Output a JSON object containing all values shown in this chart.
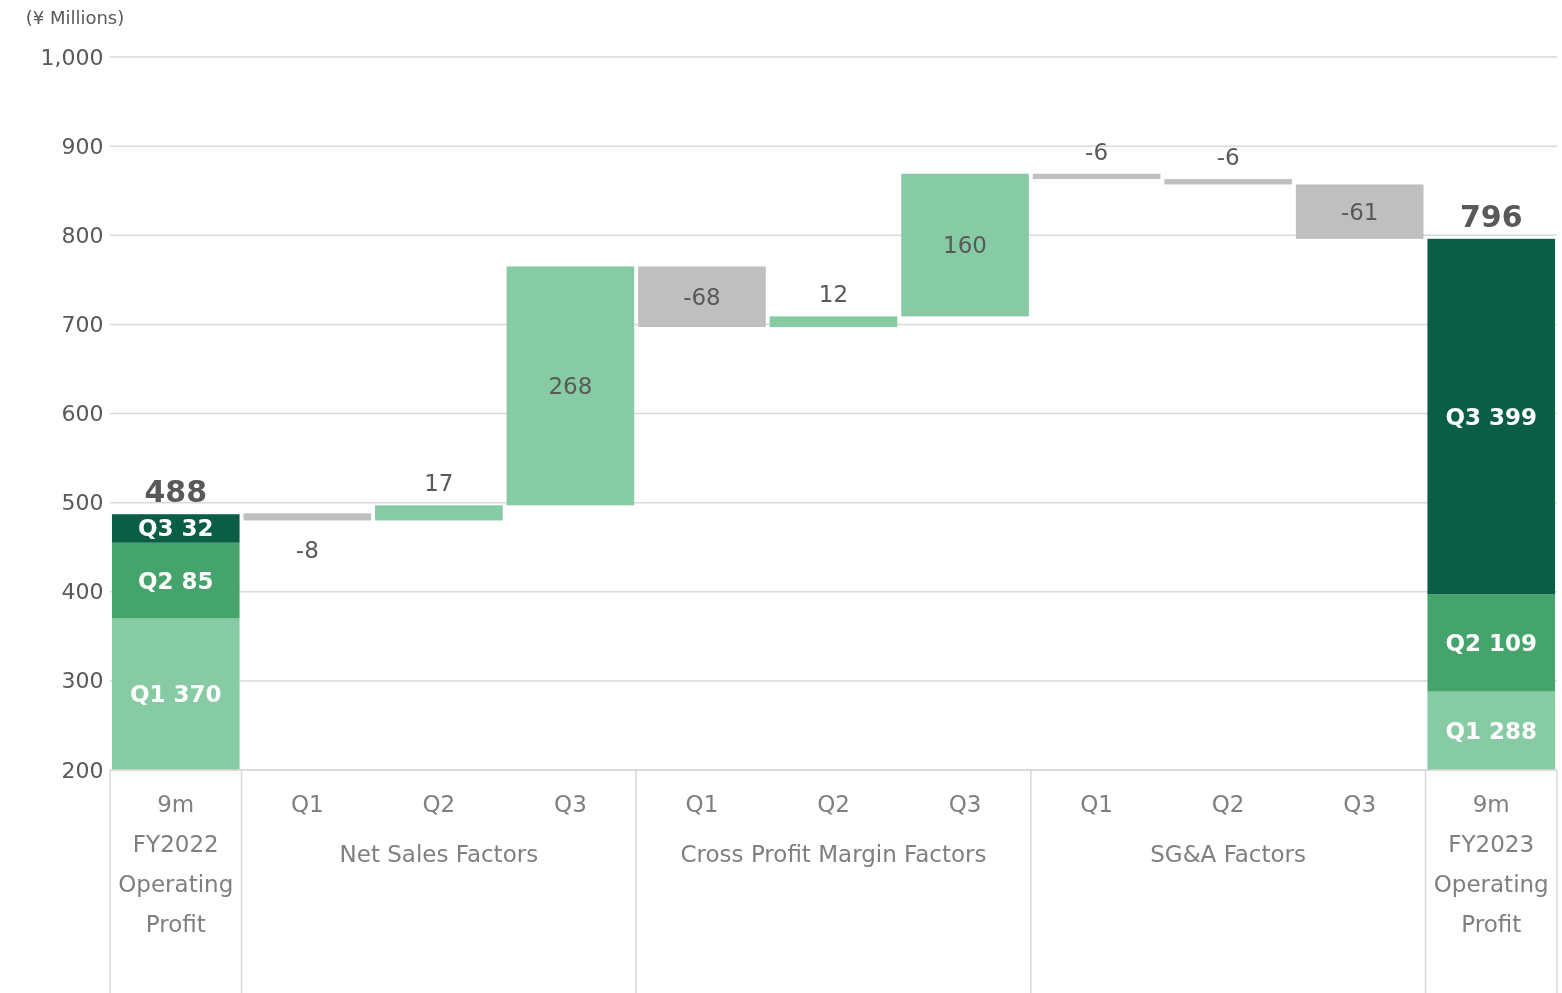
{
  "chart_data": {
    "type": "bar",
    "ylabel": "(¥ Millions)",
    "categories": [
      "9m FY2022 Operating Profit",
      "Q1",
      "Q2",
      "Q3",
      "Q1",
      "Q2",
      "Q3",
      "Q1",
      "Q2",
      "Q3",
      "9m FY2023 Operating Profit"
    ],
    "annotations": [
      "Net Sales Factors",
      "Cross Profit Margin Factors",
      "SG&A Factors"
    ],
    "series": [
      {
        "color": "#86cba4",
        "values": [
          370,
          null,
          null,
          null,
          null,
          null,
          null,
          null,
          null,
          null,
          288
        ],
        "value_labels": [
          "Q1 370",
          null,
          null,
          null,
          null,
          null,
          null,
          null,
          null,
          null,
          "Q1 288"
        ]
      },
      {
        "color": "#45a46c",
        "values": [
          85,
          null,
          null,
          null,
          null,
          null,
          null,
          null,
          null,
          null,
          109
        ],
        "base": [
          370,
          null,
          null,
          null,
          null,
          null,
          null,
          null,
          null,
          null,
          288
        ],
        "value_labels": [
          "Q2 85",
          null,
          null,
          null,
          null,
          null,
          null,
          null,
          null,
          null,
          "Q2 109"
        ]
      },
      {
        "color": "#0a5e45",
        "values": [
          32,
          null,
          null,
          null,
          null,
          null,
          null,
          null,
          null,
          null,
          399
        ],
        "base": [
          455,
          null,
          null,
          null,
          null,
          null,
          null,
          null,
          null,
          null,
          397
        ],
        "value_labels": [
          "Q3 32",
          null,
          null,
          null,
          null,
          null,
          null,
          null,
          null,
          null,
          "Q3 399"
        ]
      },
      {
        "values": [
          null,
          -8,
          17,
          268,
          -68,
          12,
          160,
          -6,
          -6,
          -61,
          null
        ],
        "base": [
          null,
          488,
          480,
          497,
          765,
          697,
          709,
          869,
          863,
          857,
          null
        ],
        "colors": [
          null,
          "#bfbfbf",
          "#86cba4",
          "#86cba4",
          "#bfbfbf",
          "#86cba4",
          "#86cba4",
          "#bfbfbf",
          "#bfbfbf",
          "#bfbfbf",
          null
        ],
        "value_labels": [
          null,
          "-8",
          "17",
          "268",
          "-68",
          "12",
          "160",
          "-6",
          "-6",
          "-61",
          null
        ]
      }
    ],
    "totals": [
      "488",
      null,
      null,
      null,
      null,
      null,
      null,
      null,
      null,
      null,
      "796"
    ],
    "ylim": [
      200,
      1000
    ],
    "yticks": [
      200,
      300,
      400,
      500,
      600,
      700,
      800,
      900,
      {
        "value": 1000,
        "label": "1,000"
      }
    ],
    "grid": "y"
  }
}
